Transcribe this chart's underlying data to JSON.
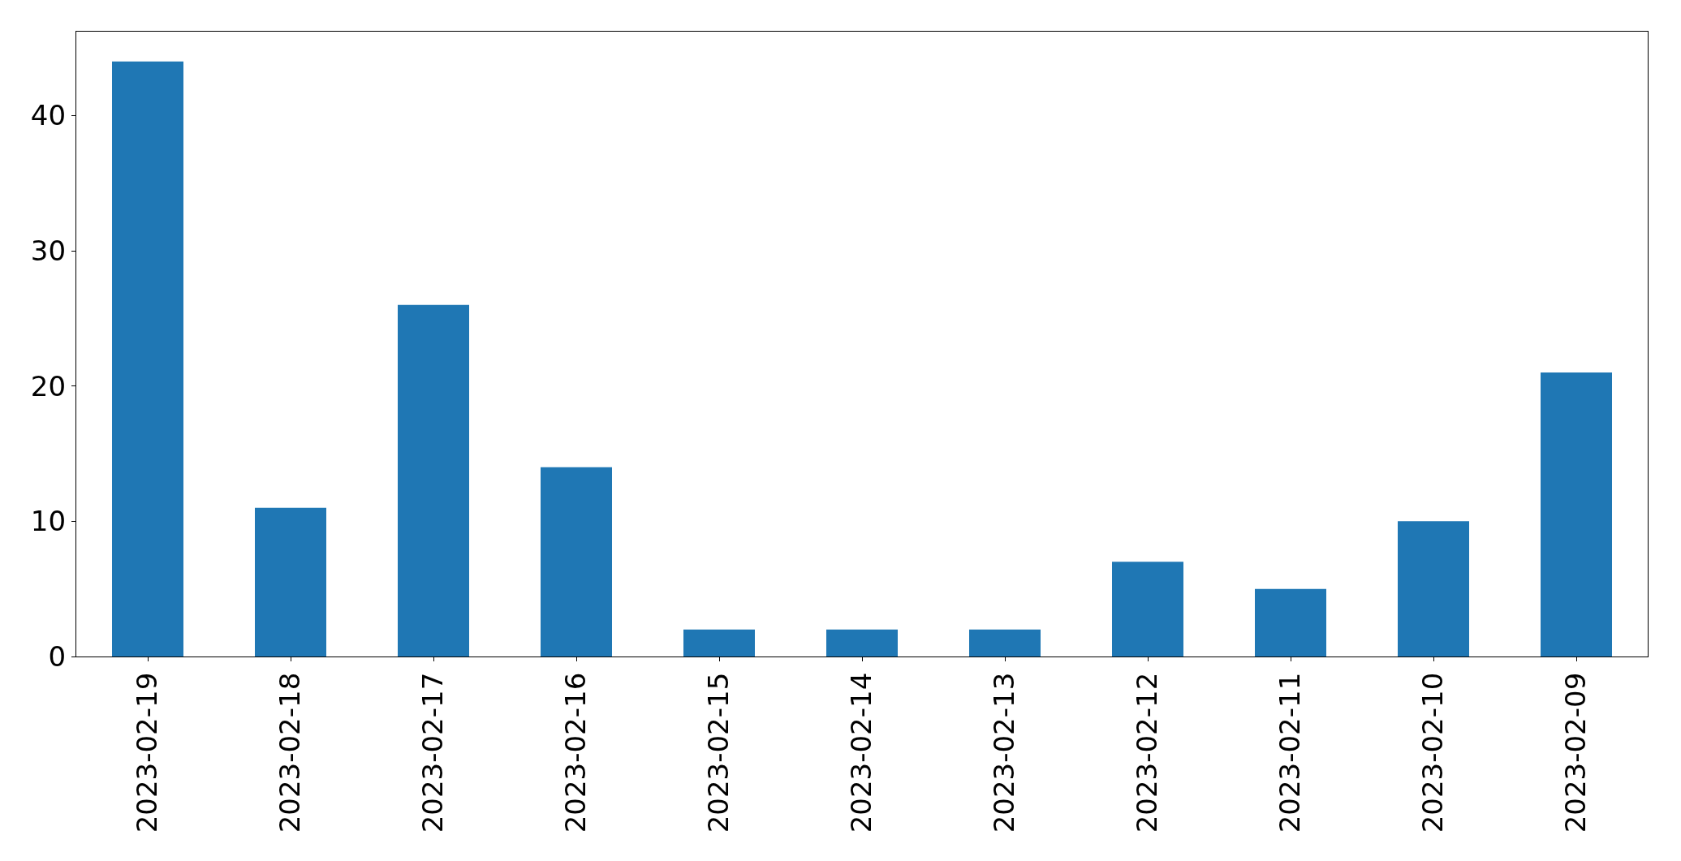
{
  "chart_data": {
    "type": "bar",
    "categories": [
      "2023-02-19",
      "2023-02-18",
      "2023-02-17",
      "2023-02-16",
      "2023-02-15",
      "2023-02-14",
      "2023-02-13",
      "2023-02-12",
      "2023-02-11",
      "2023-02-10",
      "2023-02-09"
    ],
    "values": [
      44,
      11,
      26,
      14,
      2,
      2,
      2,
      7,
      5,
      10,
      21
    ],
    "color": "#1f77b4",
    "ylim": [
      0,
      46.2
    ],
    "yticks": [
      0,
      10,
      20,
      30,
      40
    ]
  }
}
